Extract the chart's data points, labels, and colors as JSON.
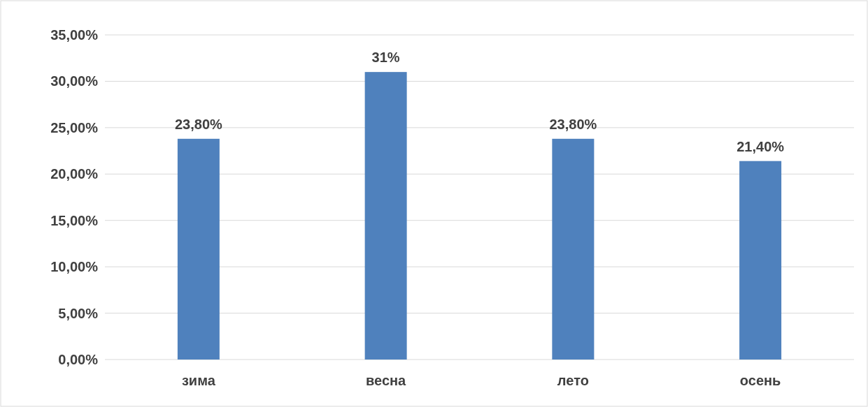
{
  "chart_data": {
    "type": "bar",
    "categories": [
      "зима",
      "весна",
      "лето",
      "осень"
    ],
    "values": [
      23.8,
      31,
      23.8,
      21.4
    ],
    "value_labels": [
      "23,80%",
      "31%",
      "23,80%",
      "21,40%"
    ],
    "color": "#4f81bd",
    "ylim": [
      0,
      35
    ],
    "yticks": [
      {
        "value": 0,
        "label": "0,00%"
      },
      {
        "value": 5,
        "label": "5,00%"
      },
      {
        "value": 10,
        "label": "10,00%"
      },
      {
        "value": 15,
        "label": "15,00%"
      },
      {
        "value": 20,
        "label": "20,00%"
      },
      {
        "value": 25,
        "label": "25,00%"
      },
      {
        "value": 30,
        "label": "30,00%"
      },
      {
        "value": 35,
        "label": "35,00%"
      }
    ],
    "grid": "y"
  }
}
